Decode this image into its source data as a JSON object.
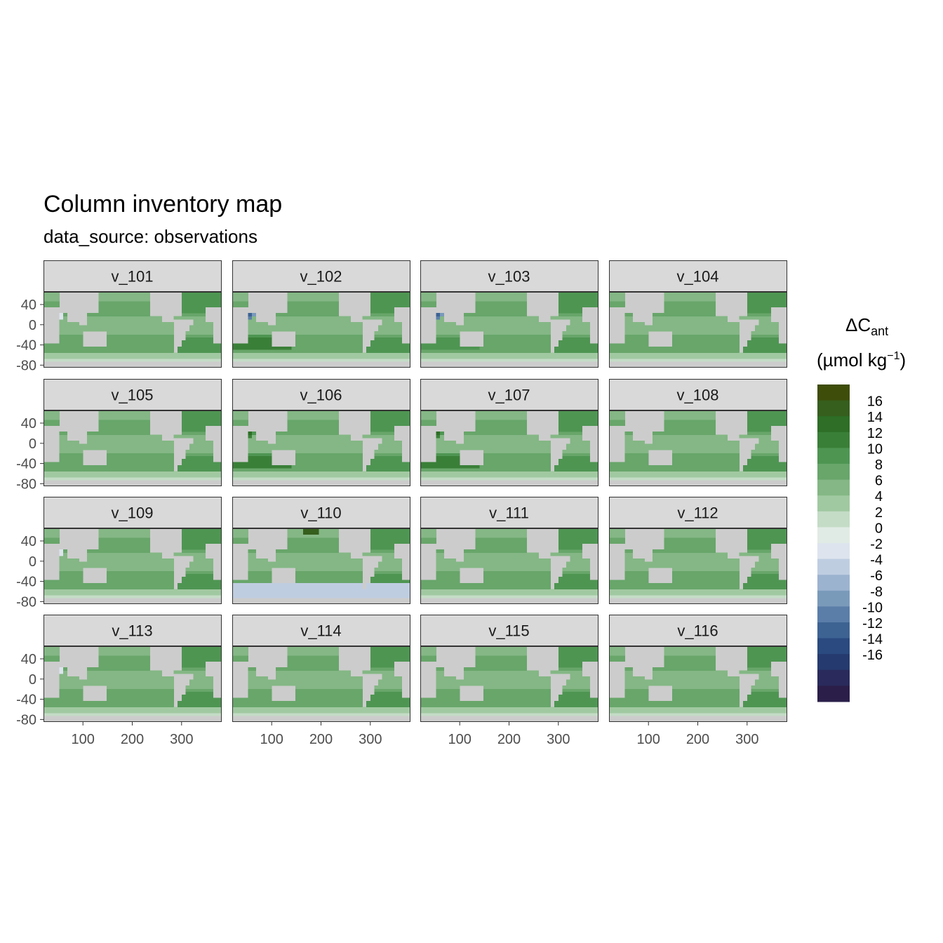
{
  "title": "Column inventory map",
  "subtitle": "data_source: observations",
  "chart_data": {
    "type": "heatmap",
    "facet_labels": [
      "v_101",
      "v_102",
      "v_103",
      "v_104",
      "v_105",
      "v_106",
      "v_107",
      "v_108",
      "v_109",
      "v_110",
      "v_111",
      "v_112",
      "v_113",
      "v_114",
      "v_115",
      "v_116"
    ],
    "x_ticks": [
      100,
      200,
      300
    ],
    "y_ticks": [
      40,
      0,
      -40,
      -80
    ],
    "xlim": [
      20,
      380
    ],
    "ylim": [
      -85,
      65
    ],
    "legend": {
      "title_main": "ΔC",
      "title_sub": "ant",
      "unit_prefix": "(µmol kg",
      "unit_sup": "−1",
      "unit_suffix": ")",
      "labels": [
        "16",
        "14",
        "12",
        "10",
        "8",
        "6",
        "4",
        "2",
        "0",
        "-2",
        "-4",
        "-6",
        "-8",
        "-10",
        "-12",
        "-14",
        "-16"
      ],
      "colors": [
        "#3f4d0a",
        "#365e1d",
        "#2e6e26",
        "#3a7f38",
        "#4e9552",
        "#68a66a",
        "#84b785",
        "#a1c9a1",
        "#c4dcc6",
        "#e1ebe5",
        "#dde4ee",
        "#bfcde1",
        "#9cb3cf",
        "#7a9aba",
        "#5a7ea8",
        "#3d6393",
        "#2a4a80",
        "#253a6e",
        "#2a2a5c",
        "#2b1f4a"
      ],
      "placement": "right"
    },
    "panel_background": "#cccccc",
    "strip_background": "#d9d9d9",
    "anomalies": {
      "v_102": {
        "pacific_nw": -16,
        "south_indian": 12
      },
      "v_103": {
        "pacific_nw": -16,
        "south_indian": 10
      },
      "v_106": {
        "pacific_nw": 16,
        "south_indian": 12
      },
      "v_107": {
        "pacific_nw": 16,
        "south_indian": 12
      },
      "v_110": {
        "south_ocean": -6,
        "north_pacific": 16
      }
    }
  }
}
